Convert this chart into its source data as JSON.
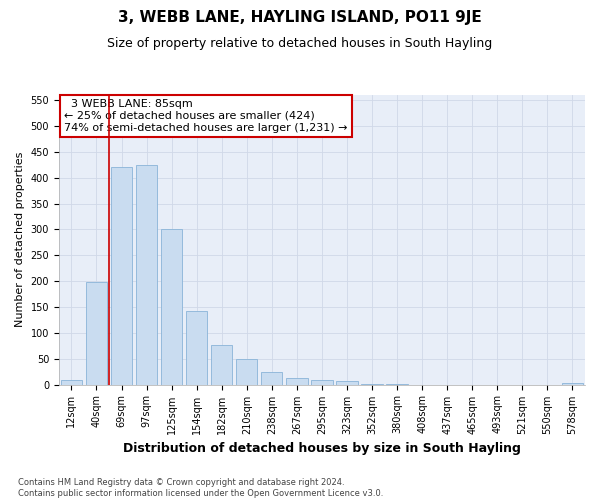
{
  "title": "3, WEBB LANE, HAYLING ISLAND, PO11 9JE",
  "subtitle": "Size of property relative to detached houses in South Hayling",
  "xlabel": "Distribution of detached houses by size in South Hayling",
  "ylabel": "Number of detached properties",
  "footer_line1": "Contains HM Land Registry data © Crown copyright and database right 2024.",
  "footer_line2": "Contains public sector information licensed under the Open Government Licence v3.0.",
  "categories": [
    "12sqm",
    "40sqm",
    "69sqm",
    "97sqm",
    "125sqm",
    "154sqm",
    "182sqm",
    "210sqm",
    "238sqm",
    "267sqm",
    "295sqm",
    "323sqm",
    "352sqm",
    "380sqm",
    "408sqm",
    "437sqm",
    "465sqm",
    "493sqm",
    "521sqm",
    "550sqm",
    "578sqm"
  ],
  "values": [
    8,
    198,
    420,
    425,
    300,
    143,
    77,
    49,
    24,
    12,
    8,
    6,
    2,
    1,
    0,
    0,
    0,
    0,
    0,
    0,
    3
  ],
  "bar_color": "#c9dcf0",
  "bar_edge_color": "#8ab4d8",
  "annotation_text": "  3 WEBB LANE: 85sqm\n← 25% of detached houses are smaller (424)\n74% of semi-detached houses are larger (1,231) →",
  "vline_x": 1.5,
  "vline_color": "#cc0000",
  "annotation_box_facecolor": "#ffffff",
  "annotation_box_edgecolor": "#cc0000",
  "ylim": [
    0,
    560
  ],
  "yticks": [
    0,
    50,
    100,
    150,
    200,
    250,
    300,
    350,
    400,
    450,
    500,
    550
  ],
  "grid_color": "#d0d8e8",
  "fig_bg_color": "#ffffff",
  "plot_bg_color": "#e8eef8",
  "title_fontsize": 11,
  "subtitle_fontsize": 9,
  "xlabel_fontsize": 9,
  "ylabel_fontsize": 8,
  "tick_fontsize": 7,
  "annotation_fontsize": 8,
  "footer_fontsize": 6
}
